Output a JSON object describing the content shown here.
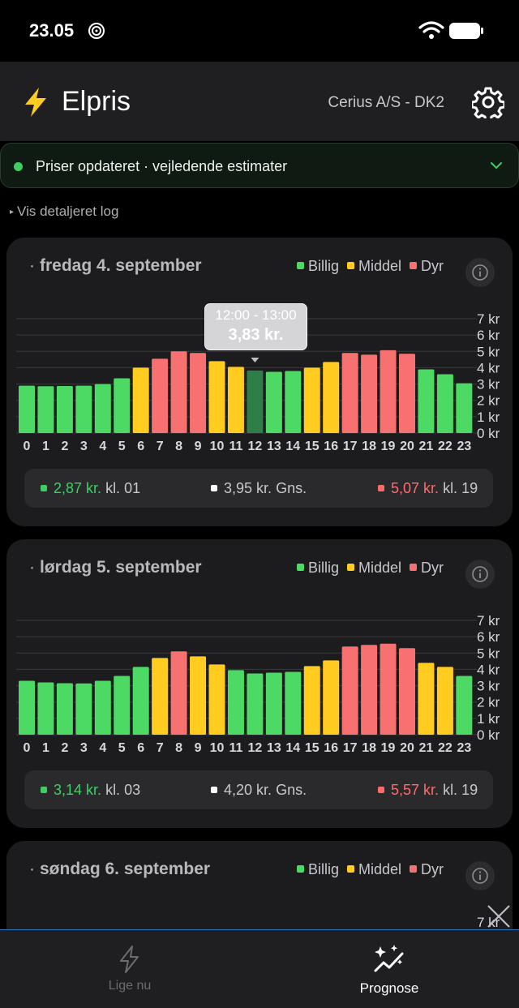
{
  "status_bar": {
    "time": "23.05"
  },
  "app_bar": {
    "title": "Elpris",
    "provider": "Cerius A/S - DK2"
  },
  "banner": {
    "text": "Priser opdateret · vejledende estimater"
  },
  "detail_log": {
    "label": "Vis detaljeret log"
  },
  "legend": {
    "cheap": "Billig",
    "medium": "Middel",
    "expensive": "Dyr"
  },
  "colors": {
    "cheap": "#4cd964",
    "medium": "#ffcc1f",
    "expensive": "#f87171",
    "selected": "#2f7d47"
  },
  "days": [
    {
      "title": "fredag 4. september",
      "stats": {
        "min_value": "2,87 kr.",
        "min_hour": "kl. 01",
        "avg_value": "3,95 kr.",
        "avg_label": "Gns.",
        "max_value": "5,07 kr.",
        "max_hour": "kl. 19"
      },
      "tooltip": {
        "time": "12:00 - 13:00",
        "value": "3,83 kr.",
        "hour": 12
      }
    },
    {
      "title": "lørdag 5. september",
      "stats": {
        "min_value": "3,14 kr.",
        "min_hour": "kl. 03",
        "avg_value": "4,20 kr.",
        "avg_label": "Gns.",
        "max_value": "5,57 kr.",
        "max_hour": "kl. 19"
      }
    },
    {
      "title": "søndag 6. september"
    }
  ],
  "chart_data": [
    {
      "type": "bar",
      "title": "fredag 4. september",
      "categories": [
        "0",
        "1",
        "2",
        "3",
        "4",
        "5",
        "6",
        "7",
        "8",
        "9",
        "10",
        "11",
        "12",
        "13",
        "14",
        "15",
        "16",
        "17",
        "18",
        "19",
        "20",
        "21",
        "22",
        "23"
      ],
      "values": [
        2.9,
        2.87,
        2.88,
        2.9,
        3.0,
        3.35,
        4.0,
        4.55,
        5.0,
        4.9,
        4.4,
        4.05,
        3.83,
        3.75,
        3.8,
        4.0,
        4.35,
        4.9,
        4.8,
        5.07,
        4.85,
        3.9,
        3.6,
        3.05
      ],
      "levels": [
        "cheap",
        "cheap",
        "cheap",
        "cheap",
        "cheap",
        "cheap",
        "medium",
        "expensive",
        "expensive",
        "expensive",
        "medium",
        "medium",
        "cheap",
        "cheap",
        "cheap",
        "medium",
        "medium",
        "expensive",
        "expensive",
        "expensive",
        "expensive",
        "cheap",
        "cheap",
        "cheap"
      ],
      "y_ticks": [
        "0 kr",
        "1 kr",
        "2 kr",
        "3 kr",
        "4 kr",
        "5 kr",
        "6 kr",
        "7 kr"
      ],
      "ylim": [
        0,
        7
      ]
    },
    {
      "type": "bar",
      "title": "lørdag 5. september",
      "categories": [
        "0",
        "1",
        "2",
        "3",
        "4",
        "5",
        "6",
        "7",
        "8",
        "9",
        "10",
        "11",
        "12",
        "13",
        "14",
        "15",
        "16",
        "17",
        "18",
        "19",
        "20",
        "21",
        "22",
        "23"
      ],
      "values": [
        3.3,
        3.2,
        3.15,
        3.14,
        3.3,
        3.6,
        4.15,
        4.7,
        5.1,
        4.8,
        4.3,
        3.95,
        3.75,
        3.8,
        3.85,
        4.2,
        4.55,
        5.4,
        5.5,
        5.57,
        5.3,
        4.4,
        4.15,
        3.6
      ],
      "levels": [
        "cheap",
        "cheap",
        "cheap",
        "cheap",
        "cheap",
        "cheap",
        "cheap",
        "medium",
        "expensive",
        "medium",
        "medium",
        "cheap",
        "cheap",
        "cheap",
        "cheap",
        "medium",
        "medium",
        "expensive",
        "expensive",
        "expensive",
        "expensive",
        "medium",
        "medium",
        "cheap"
      ],
      "y_ticks": [
        "0 kr",
        "1 kr",
        "2 kr",
        "3 kr",
        "4 kr",
        "5 kr",
        "6 kr",
        "7 kr"
      ],
      "ylim": [
        0,
        7
      ]
    },
    {
      "type": "bar",
      "title": "søndag 6. september",
      "y_ticks": [
        "7 kr"
      ],
      "ylim": [
        0,
        7
      ]
    }
  ],
  "bottom_nav": {
    "now_label": "Lige nu",
    "forecast_label": "Prognose"
  }
}
